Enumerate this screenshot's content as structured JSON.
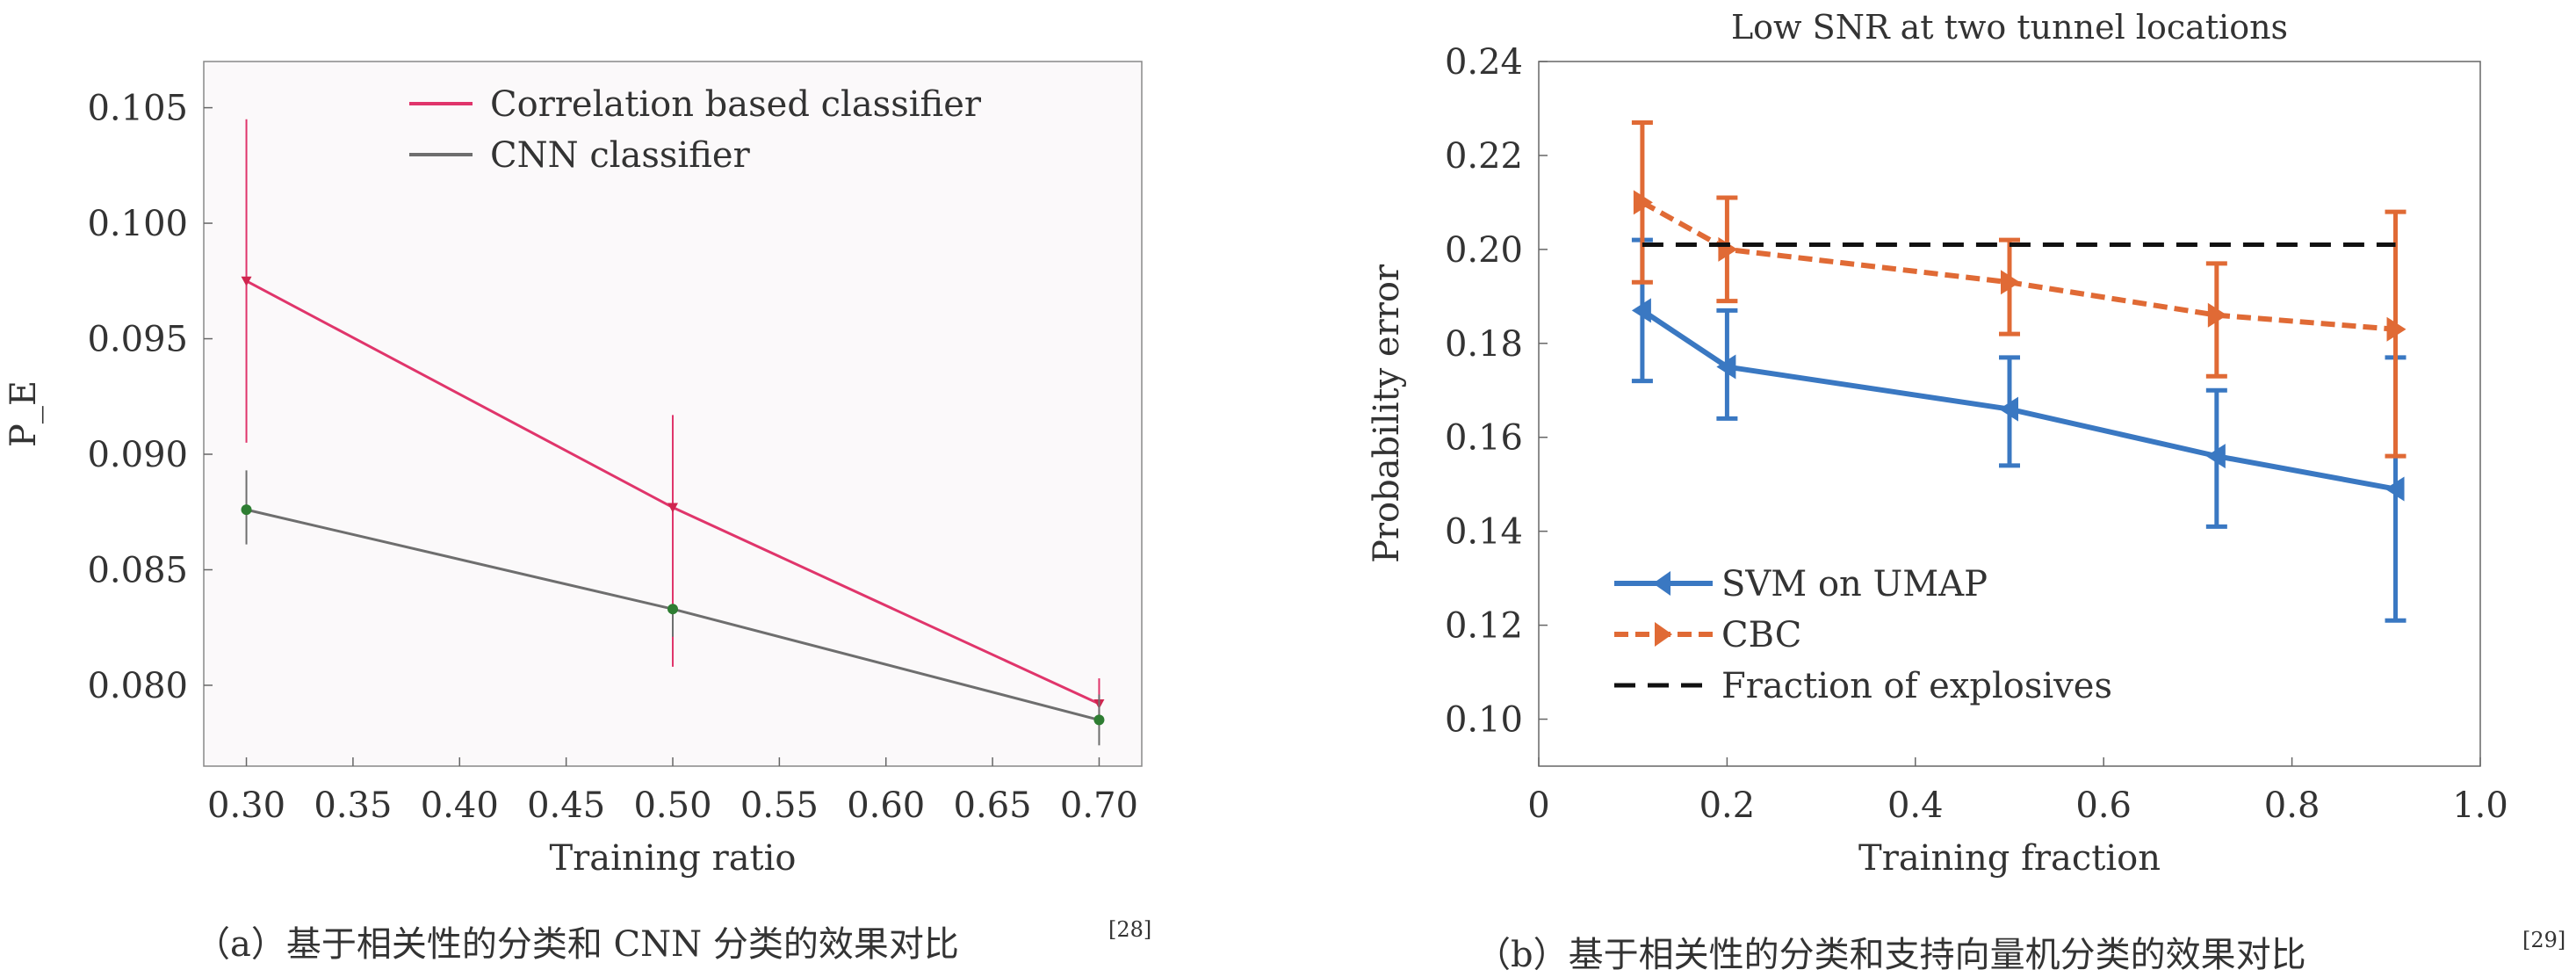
{
  "chart_data": [
    {
      "type": "line",
      "title": "",
      "xlabel": "Training ratio",
      "ylabel": "P_E",
      "xlim": [
        0.28,
        0.72
      ],
      "ylim": [
        0.0765,
        0.107
      ],
      "xticks": [
        "0.30",
        "0.35",
        "0.40",
        "0.45",
        "0.50",
        "0.55",
        "0.60",
        "0.65",
        "0.70"
      ],
      "yticks": [
        "0.080",
        "0.085",
        "0.090",
        "0.095",
        "0.100",
        "0.105"
      ],
      "legend_position": "top-right",
      "series": [
        {
          "name": "Correlation based classifier",
          "color": "#e0356b",
          "x": [
            0.3,
            0.5,
            0.7
          ],
          "y": [
            0.0975,
            0.0877,
            0.0792
          ],
          "err_low": [
            0.0905,
            0.0808,
            0.0786
          ],
          "err_high": [
            0.1045,
            0.0917,
            0.0803
          ]
        },
        {
          "name": "CNN classifier",
          "color": "#6e6e6e",
          "x": [
            0.3,
            0.5,
            0.7
          ],
          "y": [
            0.0876,
            0.0833,
            0.0785
          ],
          "err_low": [
            0.0861,
            0.0821,
            0.0774
          ],
          "err_high": [
            0.0893,
            0.0833,
            0.0796
          ]
        }
      ],
      "caption": "（a）基于相关性的分类和 CNN 分类的效果对比",
      "caption_ref": "[28]"
    },
    {
      "type": "line",
      "title": "Low SNR at two tunnel locations",
      "xlabel": "Training fraction",
      "ylabel": "Probability error",
      "xlim": [
        0,
        1.0
      ],
      "ylim": [
        0.09,
        0.24
      ],
      "xticks": [
        "0",
        "0.2",
        "0.4",
        "0.6",
        "0.8",
        "1.0"
      ],
      "yticks": [
        "0.10",
        "0.12",
        "0.14",
        "0.16",
        "0.18",
        "0.20",
        "0.22",
        "0.24"
      ],
      "legend_position": "bottom-left",
      "series": [
        {
          "name": "SVM on UMAP",
          "color": "#3a78c2",
          "x": [
            0.11,
            0.2,
            0.5,
            0.72,
            0.91
          ],
          "y": [
            0.187,
            0.175,
            0.166,
            0.156,
            0.149
          ],
          "err_low": [
            0.172,
            0.164,
            0.154,
            0.141,
            0.121
          ],
          "err_high": [
            0.202,
            0.187,
            0.177,
            0.17,
            0.177
          ]
        },
        {
          "name": "CBC",
          "color": "#e06a35",
          "x": [
            0.11,
            0.2,
            0.5,
            0.72,
            0.91
          ],
          "y": [
            0.21,
            0.2,
            0.193,
            0.186,
            0.183
          ],
          "err_low": [
            0.193,
            0.189,
            0.182,
            0.173,
            0.156
          ],
          "err_high": [
            0.227,
            0.211,
            0.202,
            0.197,
            0.208
          ]
        },
        {
          "name": "Fraction of explosives",
          "color": "#111111",
          "x": [
            0.11,
            0.91
          ],
          "y": [
            0.201,
            0.201
          ]
        }
      ],
      "caption": "（b）基于相关性的分类和支持向量机分类的效果对比",
      "caption_ref": "[29]"
    }
  ]
}
